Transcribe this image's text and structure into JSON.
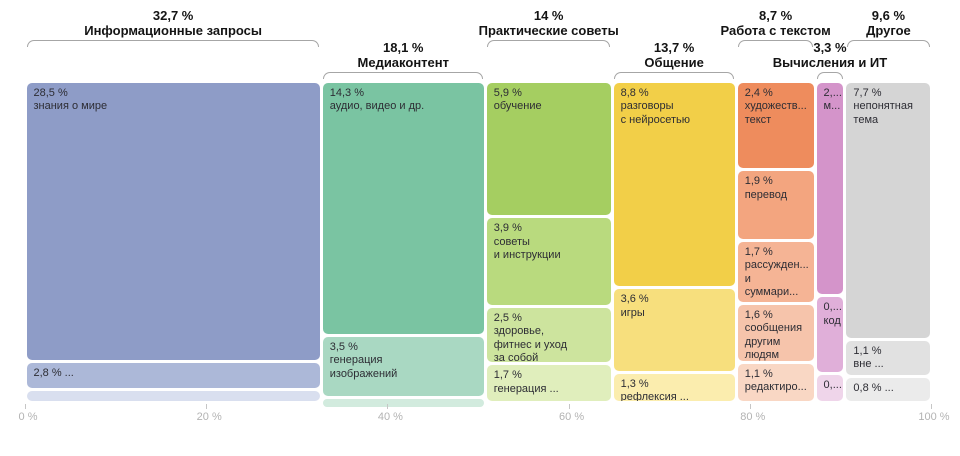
{
  "chart_data": {
    "type": "marimekko",
    "title": "",
    "unit": "%",
    "x_axis": {
      "range": [
        0,
        100
      ],
      "ticks": [
        {
          "label": "0 %",
          "value": 0
        },
        {
          "label": "20 %",
          "value": 20
        },
        {
          "label": "40 %",
          "value": 40
        },
        {
          "label": "60 %",
          "value": 60
        },
        {
          "label": "80 %",
          "value": 80
        },
        {
          "label": "100 %",
          "value": 100
        }
      ]
    },
    "groups": [
      {
        "header": {
          "pct": "32,7 %",
          "name": "Информационные запросы"
        },
        "total": 32.7,
        "header_row": 0,
        "segments": [
          {
            "pct": "28,5 %",
            "name": "знания о мире",
            "value": 28.5,
            "color": "#8E9CC7"
          },
          {
            "pct": "2,8 % ...",
            "name": "",
            "value": 2.8,
            "color": "#ACB8D8"
          },
          {
            "pct": "",
            "name": "",
            "value": 1.4,
            "color": "#D9DFEF"
          }
        ]
      },
      {
        "header": {
          "pct": "18,1 %",
          "name": "Медиаконтент"
        },
        "total": 18.1,
        "header_row": 1,
        "segments": [
          {
            "pct": "14,3 %",
            "name": "аудио, видео и др.",
            "value": 14.3,
            "color": "#7AC4A2"
          },
          {
            "pct": "3,5 %",
            "name": "генерация\nизображений",
            "value": 3.5,
            "color": "#A9D8C2"
          },
          {
            "pct": "",
            "name": "",
            "value": 0.3,
            "color": "#D2EBDE"
          }
        ]
      },
      {
        "header": {
          "pct": "14 %",
          "name": "Практические советы"
        },
        "total": 14.0,
        "header_row": 0,
        "segments": [
          {
            "pct": "5,9 %",
            "name": "обучение",
            "value": 5.9,
            "color": "#A5CE61"
          },
          {
            "pct": "3,9 %",
            "name": "советы\nи инструкции",
            "value": 3.9,
            "color": "#B9DA7E"
          },
          {
            "pct": "2,5 %",
            "name": "здоровье,\nфитнес и уход\nза собой",
            "value": 2.5,
            "color": "#CDE49E"
          },
          {
            "pct": "1,7 %",
            "name": "генерация ...",
            "value": 1.7,
            "color": "#E0EEBC"
          }
        ]
      },
      {
        "header": {
          "pct": "13,7 %",
          "name": "Общение"
        },
        "total": 13.7,
        "header_row": 1,
        "segments": [
          {
            "pct": "8,8 %",
            "name": "разговоры\nс нейросетью",
            "value": 8.8,
            "color": "#F2CF48"
          },
          {
            "pct": "3,6 %",
            "name": "игры",
            "value": 3.6,
            "color": "#F7DF7D"
          },
          {
            "pct": "1,3 %",
            "name": "рефлексия ...",
            "value": 1.3,
            "color": "#FBEDAE"
          }
        ]
      },
      {
        "header": {
          "pct": "8,7 %",
          "name": "Работа с текстом"
        },
        "total": 8.7,
        "header_row": 0,
        "segments": [
          {
            "pct": "2,4 %",
            "name": "художеств...\nтекст",
            "value": 2.4,
            "color": "#EE8C5D"
          },
          {
            "pct": "1,9 %",
            "name": "перевод",
            "value": 1.9,
            "color": "#F3A57F"
          },
          {
            "pct": "1,7 %",
            "name": "рассужден...\nи суммари...",
            "value": 1.7,
            "color": "#F5B495"
          },
          {
            "pct": "1,6 %",
            "name": "сообщения\nдругим\nлюдям",
            "value": 1.6,
            "color": "#F6C4AB"
          },
          {
            "pct": "1,1 %",
            "name": "редактиро...",
            "value": 1.1,
            "color": "#F9D7C4"
          }
        ]
      },
      {
        "header": {
          "pct": "3,3 %",
          "name": "Вычисления и ИТ"
        },
        "total": 3.3,
        "header_row": 1,
        "segments": [
          {
            "pct": "2,...",
            "name": "м...",
            "value": 2.2,
            "color": "#D494CA"
          },
          {
            "pct": "0,...",
            "name": "код",
            "value": 0.8,
            "color": "#E0AFD9"
          },
          {
            "pct": "0,...",
            "name": "",
            "value": 0.3,
            "color": "#EFD5EA"
          }
        ]
      },
      {
        "header": {
          "pct": "9,6 %",
          "name": "Другое"
        },
        "total": 9.6,
        "header_row": 0,
        "segments": [
          {
            "pct": "7,7 %",
            "name": "непонятная\nтема",
            "value": 7.7,
            "color": "#D5D5D5"
          },
          {
            "pct": "1,1 %",
            "name": "вне ...",
            "value": 1.1,
            "color": "#E1E1E1"
          },
          {
            "pct": "0,8 % ...",
            "name": "",
            "value": 0.8,
            "color": "#EBEBEB"
          }
        ]
      }
    ],
    "layout_hints": {
      "legend": "none",
      "grid": "off",
      "column_widths_proportional_to_totals": true,
      "segment_heights_proportional_to_values": true
    },
    "colors": {
      "header_text": "#141414",
      "segment_text": "#2d2d34",
      "brace": "#a6a6a6",
      "axis_text": "#b3b3b3",
      "background": "#ffffff"
    }
  }
}
